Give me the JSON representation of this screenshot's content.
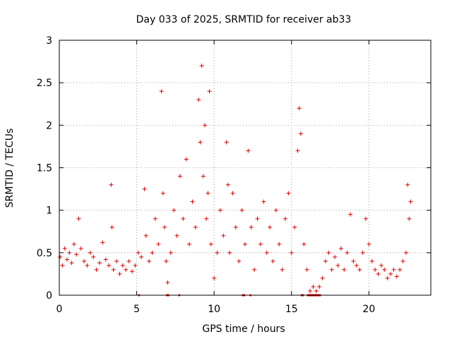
{
  "chart_data": {
    "type": "scatter",
    "title": "Day 033 of 2025, SRMTID for receiver ab33",
    "xlabel": "GPS time / hours",
    "ylabel": "SRMTID / TECUs",
    "xlim": [
      0,
      24
    ],
    "ylim": [
      0,
      3
    ],
    "xticks": [
      0,
      5,
      10,
      15,
      20
    ],
    "xtick_labels": [
      "0",
      "5",
      "10",
      "15",
      "20"
    ],
    "yticks": [
      0,
      0.5,
      1,
      1.5,
      2,
      2.5,
      3
    ],
    "ytick_labels": [
      "0",
      "0.5",
      "1",
      "1.5",
      "2",
      "2.5",
      "3"
    ],
    "grid": true,
    "marker": "+",
    "color": "#e00000",
    "series": [
      {
        "name": "SRMTID",
        "x": [
          0.05,
          0.2,
          0.35,
          0.5,
          0.65,
          0.8,
          0.95,
          1.1,
          1.25,
          1.4,
          1.6,
          1.8,
          2.0,
          2.2,
          2.4,
          2.6,
          2.8,
          3.0,
          3.2,
          3.35,
          3.4,
          3.5,
          3.7,
          3.9,
          4.1,
          4.3,
          4.5,
          4.7,
          4.9,
          5.1,
          5.3,
          5.5,
          5.6,
          5.8,
          6.0,
          6.2,
          6.4,
          6.6,
          6.7,
          6.8,
          6.9,
          7.0,
          7.2,
          7.4,
          7.6,
          7.8,
          8.0,
          8.2,
          8.4,
          8.6,
          8.8,
          9.0,
          9.1,
          9.2,
          9.3,
          9.4,
          9.5,
          9.6,
          9.7,
          9.8,
          10.0,
          10.2,
          10.4,
          10.6,
          10.8,
          10.9,
          11.0,
          11.2,
          11.4,
          11.6,
          11.8,
          12.0,
          12.2,
          12.4,
          12.6,
          12.8,
          13.0,
          13.2,
          13.4,
          13.6,
          13.8,
          14.0,
          14.2,
          14.4,
          14.6,
          14.8,
          15.0,
          15.2,
          15.4,
          15.5,
          15.6,
          15.8,
          16.0,
          16.2,
          16.4,
          16.6,
          16.8,
          17.0,
          17.2,
          17.4,
          17.6,
          17.8,
          18.0,
          18.2,
          18.4,
          18.6,
          18.8,
          19.0,
          19.2,
          19.4,
          19.6,
          19.8,
          20.0,
          20.2,
          20.4,
          20.6,
          20.8,
          21.0,
          21.2,
          21.4,
          21.6,
          21.8,
          22.0,
          22.2,
          22.4,
          22.5,
          22.6,
          22.7
        ],
        "y": [
          0.45,
          0.35,
          0.55,
          0.42,
          0.5,
          0.38,
          0.6,
          0.48,
          0.9,
          0.55,
          0.4,
          0.35,
          0.5,
          0.45,
          0.3,
          0.38,
          0.62,
          0.42,
          0.35,
          1.3,
          0.8,
          0.3,
          0.4,
          0.25,
          0.35,
          0.3,
          0.4,
          0.28,
          0.35,
          0.5,
          0.45,
          1.25,
          0.7,
          0.4,
          0.5,
          0.9,
          0.6,
          2.4,
          1.2,
          0.8,
          0.4,
          0.15,
          0.5,
          1.0,
          0.7,
          1.4,
          0.9,
          1.6,
          0.6,
          1.1,
          0.8,
          2.3,
          1.8,
          2.7,
          1.4,
          2.0,
          0.9,
          1.2,
          2.4,
          0.6,
          0.2,
          0.5,
          1.0,
          0.7,
          1.8,
          1.3,
          0.5,
          1.2,
          0.8,
          0.4,
          1.0,
          0.6,
          1.7,
          0.8,
          0.3,
          0.9,
          0.6,
          1.1,
          0.5,
          0.8,
          0.4,
          1.0,
          0.6,
          0.3,
          0.9,
          1.2,
          0.5,
          0.8,
          1.7,
          2.2,
          1.9,
          0.6,
          0.3,
          0.05,
          0.1,
          0.05,
          0.1,
          0.2,
          0.4,
          0.5,
          0.3,
          0.45,
          0.35,
          0.55,
          0.3,
          0.5,
          0.95,
          0.4,
          0.35,
          0.3,
          0.5,
          0.9,
          0.6,
          0.4,
          0.3,
          0.25,
          0.35,
          0.3,
          0.2,
          0.25,
          0.3,
          0.22,
          0.3,
          0.4,
          0.5,
          1.3,
          0.9,
          1.1
        ]
      }
    ],
    "zero_segments": [
      [
        5.1,
        5.2
      ],
      [
        6.9,
        7.1
      ],
      [
        7.7,
        7.8
      ],
      [
        11.8,
        12.0
      ],
      [
        12.3,
        12.4
      ],
      [
        15.6,
        15.8
      ],
      [
        16.0,
        16.9
      ]
    ]
  }
}
